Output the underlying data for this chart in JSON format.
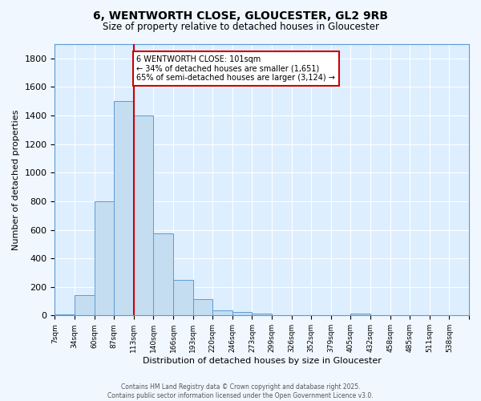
{
  "title1": "6, WENTWORTH CLOSE, GLOUCESTER, GL2 9RB",
  "title2": "Size of property relative to detached houses in Gloucester",
  "xlabel": "Distribution of detached houses by size in Gloucester",
  "ylabel": "Number of detached properties",
  "bin_labels": [
    "7sqm",
    "34sqm",
    "60sqm",
    "87sqm",
    "113sqm",
    "140sqm",
    "166sqm",
    "193sqm",
    "220sqm",
    "246sqm",
    "273sqm",
    "299sqm",
    "326sqm",
    "352sqm",
    "379sqm",
    "405sqm",
    "432sqm",
    "458sqm",
    "485sqm",
    "511sqm",
    "538sqm"
  ],
  "bin_values": [
    10,
    140,
    800,
    1500,
    1400,
    575,
    250,
    115,
    35,
    25,
    15,
    0,
    0,
    0,
    0,
    15,
    0,
    0,
    0,
    0,
    0
  ],
  "bar_color": "#c5ddf0",
  "bar_edge_color": "#5b9bd5",
  "red_line_x": 4,
  "annotation_line1": "6 WENTWORTH CLOSE: 101sqm",
  "annotation_line2": "← 34% of detached houses are smaller (1,651)",
  "annotation_line3": "65% of semi-detached houses are larger (3,124) →",
  "annotation_box_color": "#ffffff",
  "annotation_box_edge": "#cc0000",
  "ylim": [
    0,
    1900
  ],
  "yticks": [
    0,
    200,
    400,
    600,
    800,
    1000,
    1200,
    1400,
    1600,
    1800
  ],
  "bg_color": "#ddeeff",
  "grid_color": "#ffffff",
  "footer1": "Contains HM Land Registry data © Crown copyright and database right 2025.",
  "footer2": "Contains public sector information licensed under the Open Government Licence v3.0.",
  "fig_bg": "#f0f7ff"
}
